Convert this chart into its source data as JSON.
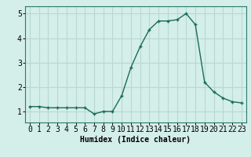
{
  "x": [
    0,
    1,
    2,
    3,
    4,
    5,
    6,
    7,
    8,
    9,
    10,
    11,
    12,
    13,
    14,
    15,
    16,
    17,
    18,
    19,
    20,
    21,
    22,
    23
  ],
  "y": [
    1.2,
    1.2,
    1.15,
    1.15,
    1.15,
    1.15,
    1.15,
    0.9,
    1.0,
    1.0,
    1.65,
    2.8,
    3.65,
    4.35,
    4.7,
    4.7,
    4.75,
    5.0,
    4.55,
    2.2,
    1.8,
    1.55,
    1.4,
    1.35
  ],
  "line_color": "#1a6b5a",
  "marker": "+",
  "markersize": 3.5,
  "linewidth": 1.0,
  "background_color": "#d4eeea",
  "grid_color": "#b8d8d4",
  "xlabel": "Humidex (Indice chaleur)",
  "xlabel_fontsize": 7,
  "tick_fontsize": 7,
  "xlim": [
    -0.5,
    23.5
  ],
  "ylim": [
    0.55,
    5.3
  ],
  "yticks": [
    1,
    2,
    3,
    4,
    5
  ],
  "xticks": [
    0,
    1,
    2,
    3,
    4,
    5,
    6,
    7,
    8,
    9,
    10,
    11,
    12,
    13,
    14,
    15,
    16,
    17,
    18,
    19,
    20,
    21,
    22,
    23
  ],
  "font_family": "monospace"
}
